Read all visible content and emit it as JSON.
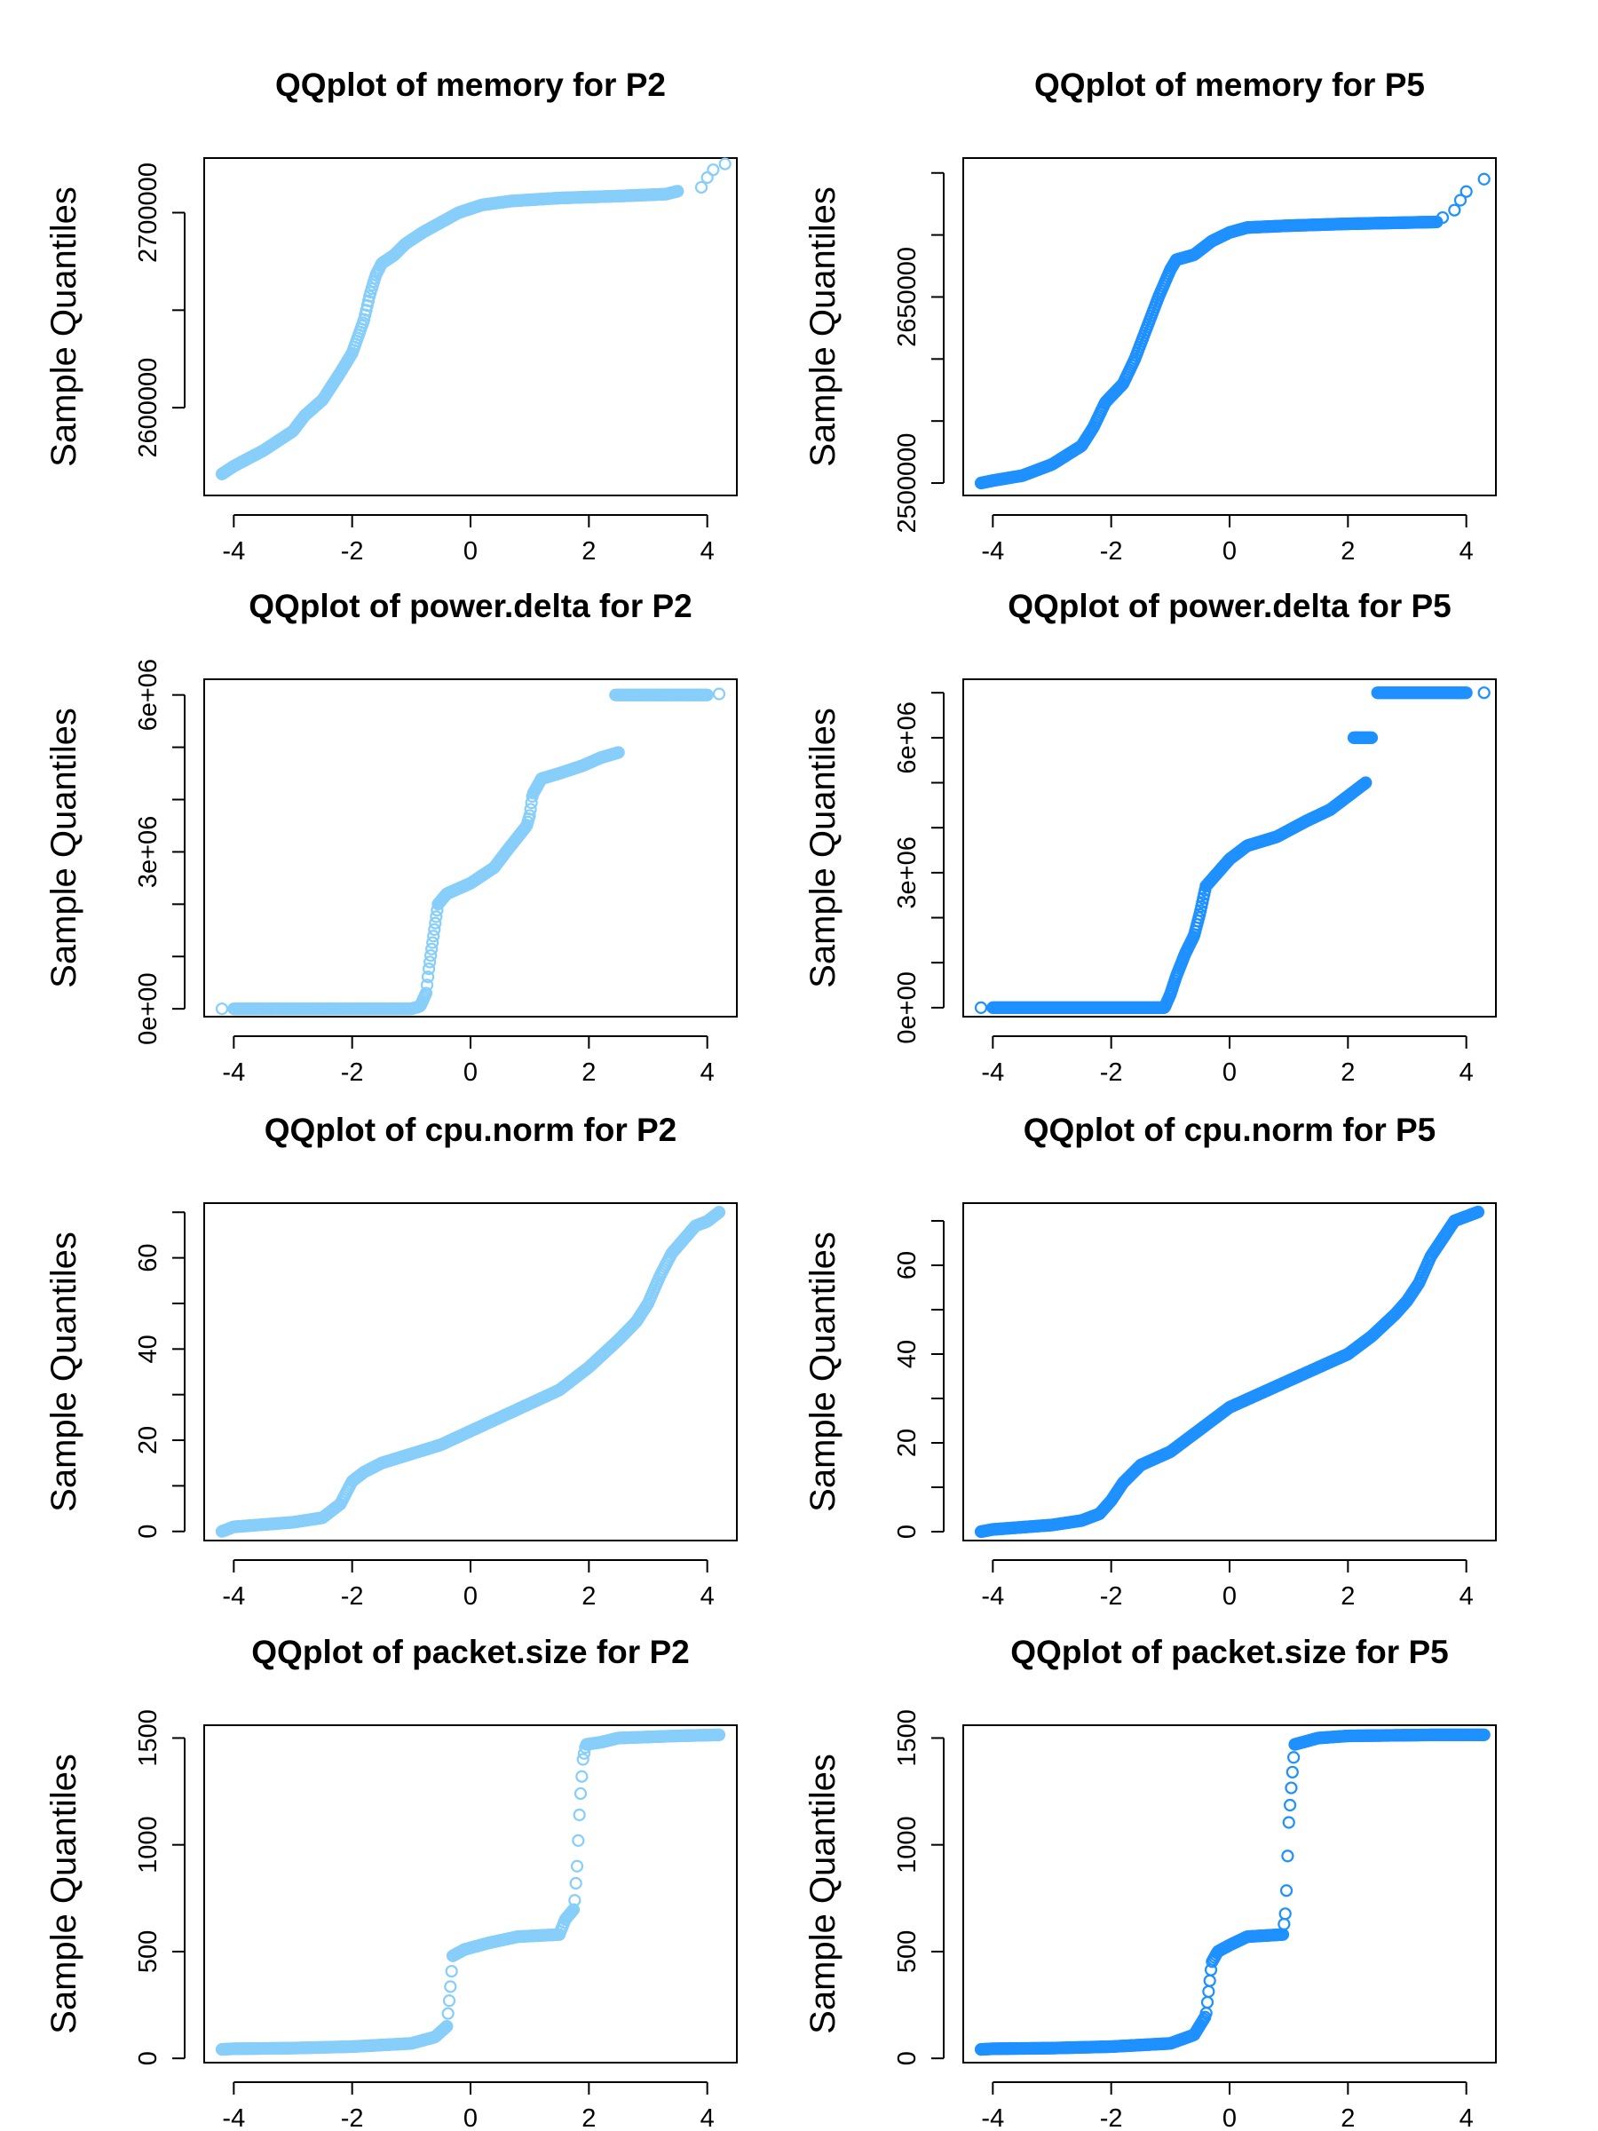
{
  "chart_data": [
    {
      "type": "scatter",
      "title": "QQplot of memory for P2",
      "ylabel": "Sample Quantiles",
      "xlabel": "",
      "xlim": [
        -4.5,
        4.5
      ],
      "ylim": [
        2555000,
        2728000
      ],
      "xticks": [
        -4,
        -2,
        0,
        2,
        4
      ],
      "xtick_labels": [
        "-4",
        "-2",
        "0",
        "2",
        "4"
      ],
      "yticks": [
        2600000,
        2650000,
        2700000
      ],
      "ytick_labels": [
        "2600000",
        "",
        "2700000"
      ],
      "color": "#87cefa",
      "curve": [
        [
          -4.2,
          2566000
        ],
        [
          -4.0,
          2570000
        ],
        [
          -3.5,
          2578000
        ],
        [
          -3.0,
          2588000
        ],
        [
          -2.8,
          2596000
        ],
        [
          -2.5,
          2604000
        ],
        [
          -2.2,
          2618000
        ],
        [
          -2.0,
          2628000
        ],
        [
          -1.8,
          2645000
        ],
        [
          -1.7,
          2658000
        ],
        [
          -1.6,
          2668000
        ],
        [
          -1.5,
          2674000
        ],
        [
          -1.3,
          2678000
        ],
        [
          -1.1,
          2684000
        ],
        [
          -0.8,
          2690000
        ],
        [
          -0.5,
          2695000
        ],
        [
          -0.2,
          2700000
        ],
        [
          0.2,
          2704000
        ],
        [
          0.7,
          2706000
        ],
        [
          1.5,
          2707500
        ],
        [
          2.5,
          2708500
        ],
        [
          3.3,
          2709500
        ],
        [
          3.5,
          2711000
        ]
      ],
      "tail": [
        [
          3.9,
          2713000
        ],
        [
          4.0,
          2718000
        ],
        [
          4.1,
          2722000
        ],
        [
          4.3,
          2725000
        ]
      ]
    },
    {
      "type": "scatter",
      "title": "QQplot of memory for P5",
      "ylabel": "Sample Quantiles",
      "xlabel": "",
      "xlim": [
        -4.5,
        4.5
      ],
      "ylim": [
        2490000,
        2762000
      ],
      "xticks": [
        -4,
        -2,
        0,
        2,
        4
      ],
      "xtick_labels": [
        "-4",
        "-2",
        "0",
        "2",
        "4"
      ],
      "yticks": [
        2500000,
        2550000,
        2600000,
        2650000,
        2700000,
        2750000
      ],
      "ytick_labels": [
        "2500000",
        "",
        "",
        "2650000",
        "",
        ""
      ],
      "color": "#1e90ff",
      "curve": [
        [
          -4.2,
          2500000
        ],
        [
          -4.0,
          2502000
        ],
        [
          -3.5,
          2506000
        ],
        [
          -3.0,
          2515000
        ],
        [
          -2.5,
          2530000
        ],
        [
          -2.3,
          2545000
        ],
        [
          -2.1,
          2565000
        ],
        [
          -1.8,
          2580000
        ],
        [
          -1.6,
          2600000
        ],
        [
          -1.4,
          2625000
        ],
        [
          -1.2,
          2650000
        ],
        [
          -1.0,
          2672000
        ],
        [
          -0.9,
          2680000
        ],
        [
          -0.6,
          2684000
        ],
        [
          -0.3,
          2695000
        ],
        [
          0.0,
          2702000
        ],
        [
          0.3,
          2706000
        ],
        [
          1.0,
          2707500
        ],
        [
          2.0,
          2709000
        ],
        [
          3.0,
          2710000
        ],
        [
          3.5,
          2710500
        ]
      ],
      "tail": [
        [
          3.6,
          2714000
        ],
        [
          3.8,
          2720000
        ],
        [
          3.9,
          2728000
        ],
        [
          4.0,
          2735000
        ],
        [
          4.3,
          2745000
        ]
      ]
    },
    {
      "type": "scatter",
      "title": "QQplot of power.delta for P2",
      "ylabel": "Sample Quantiles",
      "xlabel": "",
      "xlim": [
        -4.5,
        4.5
      ],
      "ylim": [
        -150000,
        6300000
      ],
      "xticks": [
        -4,
        -2,
        0,
        2,
        4
      ],
      "xtick_labels": [
        "-4",
        "-2",
        "0",
        "2",
        "4"
      ],
      "yticks": [
        0,
        1000000,
        2000000,
        3000000,
        4000000,
        5000000,
        6000000
      ],
      "ytick_labels": [
        "0e+00",
        "",
        "",
        "3e+06",
        "",
        "",
        "6e+06"
      ],
      "color": "#87cefa",
      "curve": [
        [
          -4.0,
          0
        ],
        [
          -1.0,
          0
        ],
        [
          -0.85,
          50000
        ],
        [
          -0.75,
          300000
        ],
        [
          -0.7,
          800000
        ],
        [
          -0.65,
          1200000
        ],
        [
          -0.6,
          1600000
        ],
        [
          -0.55,
          2000000
        ],
        [
          -0.4,
          2200000
        ],
        [
          0.0,
          2400000
        ],
        [
          0.4,
          2700000
        ],
        [
          0.6,
          3000000
        ],
        [
          0.95,
          3500000
        ],
        [
          1.0,
          3700000
        ],
        [
          1.05,
          4100000
        ],
        [
          1.2,
          4400000
        ],
        [
          1.5,
          4500000
        ],
        [
          1.9,
          4650000
        ],
        [
          2.2,
          4800000
        ],
        [
          2.5,
          4900000
        ]
      ],
      "flat": [
        [
          2.45,
          6000000
        ],
        [
          4.0,
          6000000
        ]
      ],
      "tail": [
        [
          -4.2,
          0
        ],
        [
          4.2,
          6020000
        ]
      ]
    },
    {
      "type": "scatter",
      "title": "QQplot of power.delta for P5",
      "ylabel": "Sample Quantiles",
      "xlabel": "",
      "xlim": [
        -4.5,
        4.5
      ],
      "ylim": [
        -200000,
        7300000
      ],
      "xticks": [
        -4,
        -2,
        0,
        2,
        4
      ],
      "xtick_labels": [
        "-4",
        "-2",
        "0",
        "2",
        "4"
      ],
      "yticks": [
        0,
        1000000,
        2000000,
        3000000,
        4000000,
        5000000,
        6000000,
        7000000
      ],
      "ytick_labels": [
        "0e+00",
        "",
        "",
        "3e+06",
        "",
        "",
        "6e+06",
        ""
      ],
      "color": "#1e90ff",
      "curve": [
        [
          -4.0,
          0
        ],
        [
          -1.1,
          0
        ],
        [
          -1.0,
          300000
        ],
        [
          -0.9,
          700000
        ],
        [
          -0.75,
          1200000
        ],
        [
          -0.6,
          1600000
        ],
        [
          -0.5,
          2100000
        ],
        [
          -0.4,
          2700000
        ],
        [
          -0.2,
          3000000
        ],
        [
          0.0,
          3300000
        ],
        [
          0.3,
          3600000
        ],
        [
          0.8,
          3800000
        ],
        [
          1.3,
          4150000
        ],
        [
          1.7,
          4400000
        ],
        [
          2.0,
          4700000
        ],
        [
          2.3,
          5000000
        ]
      ],
      "flat": [
        [
          2.1,
          6000000
        ],
        [
          2.4,
          6000000
        ]
      ],
      "flat2": [
        [
          2.5,
          7000000
        ],
        [
          4.0,
          7000000
        ]
      ],
      "tail": [
        [
          -4.2,
          0
        ],
        [
          4.3,
          7000000
        ]
      ]
    },
    {
      "type": "scatter",
      "title": "QQplot of cpu.norm for P2",
      "ylabel": "Sample Quantiles",
      "xlabel": "",
      "xlim": [
        -4.5,
        4.5
      ],
      "ylim": [
        -2,
        72
      ],
      "xticks": [
        -4,
        -2,
        0,
        2,
        4
      ],
      "xtick_labels": [
        "-4",
        "-2",
        "0",
        "2",
        "4"
      ],
      "yticks": [
        0,
        10,
        20,
        30,
        40,
        50,
        60,
        70
      ],
      "ytick_labels": [
        "0",
        "",
        "20",
        "",
        "40",
        "",
        "60",
        ""
      ],
      "color": "#87cefa",
      "curve": [
        [
          -4.2,
          0
        ],
        [
          -4.0,
          1
        ],
        [
          -3.5,
          1.5
        ],
        [
          -3.0,
          2
        ],
        [
          -2.5,
          3
        ],
        [
          -2.2,
          6
        ],
        [
          -2.0,
          11
        ],
        [
          -1.8,
          13
        ],
        [
          -1.5,
          15
        ],
        [
          -1.0,
          17
        ],
        [
          -0.5,
          19
        ],
        [
          0.0,
          22
        ],
        [
          0.5,
          25
        ],
        [
          1.0,
          28
        ],
        [
          1.5,
          31
        ],
        [
          2.0,
          36
        ],
        [
          2.5,
          42
        ],
        [
          2.8,
          46
        ],
        [
          3.0,
          50
        ],
        [
          3.2,
          56
        ],
        [
          3.4,
          61
        ],
        [
          3.6,
          64
        ],
        [
          3.8,
          67
        ],
        [
          4.0,
          68
        ],
        [
          4.2,
          70
        ]
      ]
    },
    {
      "type": "scatter",
      "title": "QQplot of cpu.norm for P5",
      "ylabel": "Sample Quantiles",
      "xlabel": "",
      "xlim": [
        -4.5,
        4.5
      ],
      "ylim": [
        -2,
        74
      ],
      "xticks": [
        -4,
        -2,
        0,
        2,
        4
      ],
      "xtick_labels": [
        "-4",
        "-2",
        "0",
        "2",
        "4"
      ],
      "yticks": [
        0,
        10,
        20,
        30,
        40,
        50,
        60,
        70
      ],
      "ytick_labels": [
        "0",
        "",
        "20",
        "",
        "40",
        "",
        "60",
        ""
      ],
      "color": "#1e90ff",
      "curve": [
        [
          -4.2,
          0
        ],
        [
          -4.0,
          0.5
        ],
        [
          -3.5,
          1
        ],
        [
          -3.0,
          1.5
        ],
        [
          -2.5,
          2.5
        ],
        [
          -2.2,
          4
        ],
        [
          -2.0,
          7
        ],
        [
          -1.8,
          11
        ],
        [
          -1.5,
          15
        ],
        [
          -1.0,
          18
        ],
        [
          -0.5,
          23
        ],
        [
          0.0,
          28
        ],
        [
          0.5,
          31
        ],
        [
          1.0,
          34
        ],
        [
          1.5,
          37
        ],
        [
          2.0,
          40
        ],
        [
          2.4,
          44
        ],
        [
          2.8,
          49
        ],
        [
          3.0,
          52
        ],
        [
          3.2,
          56
        ],
        [
          3.4,
          62
        ],
        [
          3.6,
          66
        ],
        [
          3.8,
          70
        ],
        [
          4.0,
          71
        ],
        [
          4.2,
          72
        ]
      ]
    },
    {
      "type": "scatter",
      "title": "QQplot of packet.size for P2",
      "ylabel": "Sample Quantiles",
      "xlabel": "",
      "xlim": [
        -4.5,
        4.5
      ],
      "ylim": [
        -20,
        1560
      ],
      "xticks": [
        -4,
        -2,
        0,
        2,
        4
      ],
      "xtick_labels": [
        "-4",
        "-2",
        "0",
        "2",
        "4"
      ],
      "yticks": [
        0,
        500,
        1000,
        1500
      ],
      "ytick_labels": [
        "0",
        "500",
        "1000",
        "1500"
      ],
      "color": "#87cefa",
      "curve": [
        [
          -4.2,
          42
        ],
        [
          -4.0,
          45
        ],
        [
          -3.0,
          48
        ],
        [
          -2.0,
          55
        ],
        [
          -1.0,
          70
        ],
        [
          -0.6,
          100
        ],
        [
          -0.4,
          150
        ],
        [
          -0.35,
          300
        ],
        [
          -0.3,
          480
        ],
        [
          -0.1,
          510
        ],
        [
          0.3,
          540
        ],
        [
          0.8,
          570
        ],
        [
          1.5,
          580
        ],
        [
          1.6,
          650
        ],
        [
          1.75,
          700
        ],
        [
          1.8,
          900
        ],
        [
          1.85,
          1200
        ],
        [
          1.9,
          1400
        ],
        [
          1.95,
          1470
        ],
        [
          2.2,
          1480
        ],
        [
          2.5,
          1500
        ],
        [
          3.5,
          1510
        ],
        [
          4.2,
          1515
        ]
      ]
    },
    {
      "type": "scatter",
      "title": "QQplot of packet.size for P5",
      "ylabel": "Sample Quantiles",
      "xlabel": "",
      "xlim": [
        -4.5,
        4.5
      ],
      "ylim": [
        -20,
        1560
      ],
      "xticks": [
        -4,
        -2,
        0,
        2,
        4
      ],
      "xtick_labels": [
        "-4",
        "-2",
        "0",
        "2",
        "4"
      ],
      "yticks": [
        0,
        500,
        1000,
        1500
      ],
      "ytick_labels": [
        "0",
        "500",
        "1000",
        "1500"
      ],
      "color": "#1e90ff",
      "curve": [
        [
          -4.2,
          42
        ],
        [
          -4.0,
          45
        ],
        [
          -3.0,
          48
        ],
        [
          -2.0,
          55
        ],
        [
          -1.0,
          70
        ],
        [
          -0.6,
          110
        ],
        [
          -0.4,
          200
        ],
        [
          -0.3,
          450
        ],
        [
          -0.2,
          500
        ],
        [
          0.0,
          530
        ],
        [
          0.3,
          570
        ],
        [
          0.9,
          580
        ],
        [
          0.95,
          700
        ],
        [
          1.0,
          1100
        ],
        [
          1.05,
          1300
        ],
        [
          1.1,
          1470
        ],
        [
          1.5,
          1500
        ],
        [
          2.0,
          1510
        ],
        [
          3.5,
          1515
        ],
        [
          4.3,
          1515
        ]
      ]
    }
  ]
}
